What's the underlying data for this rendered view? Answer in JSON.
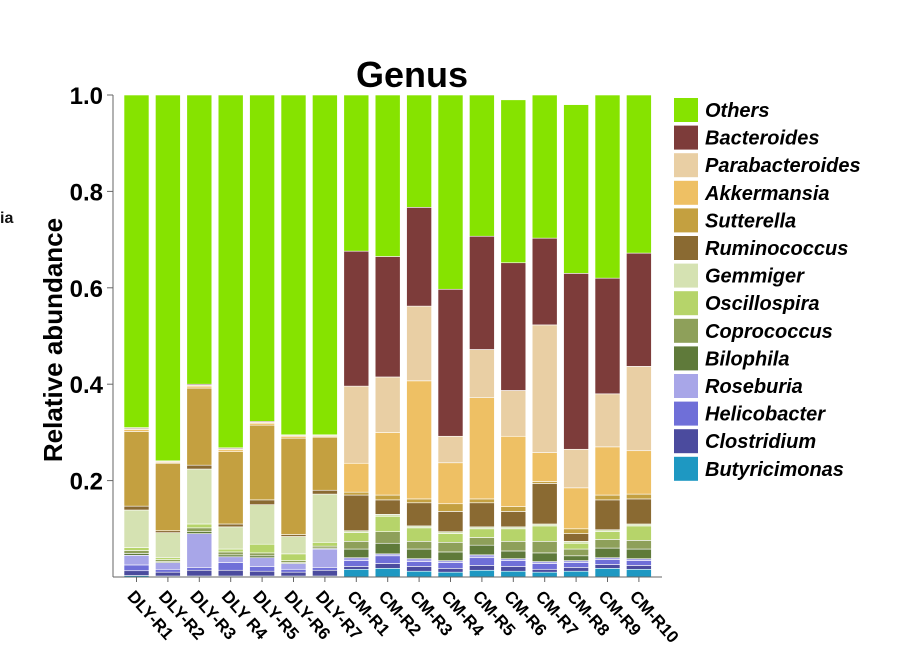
{
  "edge_label": "ia",
  "chart_data": {
    "type": "bar",
    "stacked": true,
    "title": "Genus",
    "xlabel": "",
    "ylabel": "Relative abundance",
    "ylim": [
      0,
      1.0
    ],
    "yticks": [
      0.2,
      0.4,
      0.6,
      0.8,
      1.0
    ],
    "ytick_labels": [
      "0.2",
      "0.4",
      "0.6",
      "0.8",
      "1.0"
    ],
    "legend_position": "right",
    "grid": false,
    "categories": [
      "DLY-R1",
      "DLY-R2",
      "DLY-R3",
      "DLY R4",
      "DLY-R5",
      "DLY-R6",
      "DLY-R7",
      "CM-R1",
      "CM-R2",
      "CM-R3",
      "CM-R4",
      "CM-R5",
      "CM-R6",
      "CM-R7",
      "CM-R8",
      "CM-R9",
      "CM-R10"
    ],
    "series": [
      {
        "name": "Butyricimonas",
        "color": "#1e98c2",
        "values": [
          0.003,
          0.002,
          0.002,
          0.002,
          0.002,
          0.002,
          0.002,
          0.016,
          0.018,
          0.012,
          0.01,
          0.014,
          0.012,
          0.01,
          0.012,
          0.018,
          0.016
        ]
      },
      {
        "name": "Clostridium",
        "color": "#4b4b9e",
        "values": [
          0.01,
          0.008,
          0.012,
          0.012,
          0.01,
          0.008,
          0.012,
          0.006,
          0.01,
          0.01,
          0.008,
          0.01,
          0.01,
          0.006,
          0.008,
          0.008,
          0.008
        ]
      },
      {
        "name": "Helicobacter",
        "color": "#6f6fd8",
        "values": [
          0.012,
          0.006,
          0.006,
          0.016,
          0.01,
          0.006,
          0.006,
          0.012,
          0.016,
          0.01,
          0.012,
          0.016,
          0.012,
          0.012,
          0.01,
          0.01,
          0.01
        ]
      },
      {
        "name": "Roseburia",
        "color": "#a8a6e8",
        "values": [
          0.02,
          0.014,
          0.07,
          0.012,
          0.018,
          0.012,
          0.038,
          0.006,
          0.004,
          0.006,
          0.004,
          0.006,
          0.004,
          0.004,
          0.004,
          0.004,
          0.004
        ]
      },
      {
        "name": "Bilophila",
        "color": "#5f7a3a",
        "values": [
          0.004,
          0.002,
          0.004,
          0.004,
          0.004,
          0.002,
          0.002,
          0.018,
          0.022,
          0.02,
          0.018,
          0.02,
          0.016,
          0.018,
          0.01,
          0.02,
          0.02
        ]
      },
      {
        "name": "Coprococcus",
        "color": "#8ea05a",
        "values": [
          0.006,
          0.004,
          0.008,
          0.006,
          0.006,
          0.004,
          0.004,
          0.016,
          0.024,
          0.016,
          0.02,
          0.016,
          0.02,
          0.024,
          0.014,
          0.018,
          0.018
        ]
      },
      {
        "name": "Oscillospira",
        "color": "#b6d46a",
        "values": [
          0.006,
          0.004,
          0.008,
          0.006,
          0.018,
          0.014,
          0.008,
          0.018,
          0.032,
          0.028,
          0.018,
          0.018,
          0.026,
          0.032,
          0.012,
          0.016,
          0.03
        ]
      },
      {
        "name": "Gemmiger",
        "color": "#d5e2b2",
        "values": [
          0.078,
          0.052,
          0.114,
          0.046,
          0.082,
          0.036,
          0.1,
          0.004,
          0.004,
          0.004,
          0.004,
          0.004,
          0.004,
          0.004,
          0.004,
          0.004,
          0.004
        ]
      },
      {
        "name": "Ruminococcus",
        "color": "#8a6a32",
        "values": [
          0.008,
          0.004,
          0.008,
          0.006,
          0.01,
          0.004,
          0.008,
          0.074,
          0.03,
          0.048,
          0.042,
          0.05,
          0.032,
          0.084,
          0.016,
          0.062,
          0.052
        ]
      },
      {
        "name": "Sutterella",
        "color": "#c4a040",
        "values": [
          0.155,
          0.14,
          0.16,
          0.15,
          0.155,
          0.2,
          0.11,
          0.006,
          0.01,
          0.008,
          0.016,
          0.008,
          0.01,
          0.004,
          0.01,
          0.01,
          0.01
        ]
      },
      {
        "name": "Akkermansia",
        "color": "#eec064",
        "values": [
          0.004,
          0.002,
          0.004,
          0.004,
          0.004,
          0.004,
          0.002,
          0.06,
          0.13,
          0.245,
          0.085,
          0.21,
          0.146,
          0.06,
          0.085,
          0.1,
          0.09
        ]
      },
      {
        "name": "Parabacteroides",
        "color": "#e9cfa4",
        "values": [
          0.002,
          0.002,
          0.002,
          0.002,
          0.002,
          0.002,
          0.002,
          0.16,
          0.115,
          0.155,
          0.055,
          0.1,
          0.095,
          0.265,
          0.08,
          0.11,
          0.175
        ]
      },
      {
        "name": "Bacteroides",
        "color": "#7d3c3a",
        "values": [
          0.002,
          0.001,
          0.002,
          0.002,
          0.002,
          0.001,
          0.001,
          0.28,
          0.25,
          0.205,
          0.305,
          0.235,
          0.265,
          0.18,
          0.365,
          0.24,
          0.235
        ]
      },
      {
        "name": "Others",
        "color": "#86e300",
        "values": [
          0.69,
          0.759,
          0.6,
          0.732,
          0.677,
          0.705,
          0.705,
          0.324,
          0.335,
          0.233,
          0.403,
          0.293,
          0.338,
          0.297,
          0.35,
          0.38,
          0.328
        ]
      }
    ],
    "legend_order": [
      "Others",
      "Bacteroides",
      "Parabacteroides",
      "Akkermansia",
      "Sutterella",
      "Ruminococcus",
      "Gemmiger",
      "Oscillospira",
      "Coprococcus",
      "Bilophila",
      "Roseburia",
      "Helicobacter",
      "Clostridium",
      "Butyricimonas"
    ]
  }
}
